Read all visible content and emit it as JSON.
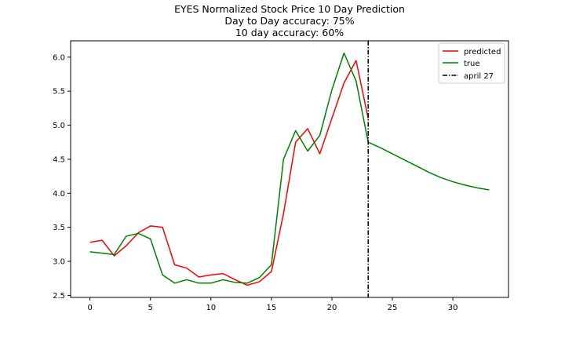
{
  "chart_data": {
    "type": "line",
    "title_lines": [
      "EYES Normalized Stock Price 10 Day Prediction",
      "Day to Day accuracy: 75%",
      "10 day accuracy: 60%"
    ],
    "xlabel": "",
    "ylabel": "",
    "xlim": [
      -1.6,
      34.6
    ],
    "ylim": [
      2.47,
      6.24
    ],
    "xticks": [
      0,
      5,
      10,
      15,
      20,
      25,
      30
    ],
    "yticks": [
      2.5,
      3.0,
      3.5,
      4.0,
      4.5,
      5.0,
      5.5,
      6.0
    ],
    "ytick_labels": [
      "2.5",
      "3.0",
      "3.5",
      "4.0",
      "4.5",
      "5.0",
      "5.5",
      "6.0"
    ],
    "grid": false,
    "legend_position": "top-right",
    "series": [
      {
        "name": "predicted",
        "color": "#ff0000",
        "x": [
          0,
          1,
          2,
          3,
          4,
          5,
          6,
          7,
          8,
          9,
          10,
          11,
          12,
          13,
          14,
          15,
          16,
          17,
          18,
          19,
          20,
          21,
          22,
          23
        ],
        "y": [
          3.28,
          3.31,
          3.08,
          3.23,
          3.42,
          3.52,
          3.5,
          2.95,
          2.9,
          2.77,
          2.8,
          2.82,
          2.73,
          2.65,
          2.7,
          2.85,
          3.7,
          4.75,
          4.95,
          4.58,
          5.1,
          5.62,
          5.95,
          5.1
        ]
      },
      {
        "name": "true",
        "color": "#008000",
        "x": [
          0,
          1,
          2,
          3,
          4,
          5,
          6,
          7,
          8,
          9,
          10,
          11,
          12,
          13,
          14,
          15,
          16,
          17,
          18,
          19,
          20,
          21,
          22,
          23,
          24,
          25,
          26,
          27,
          28,
          29,
          30,
          31,
          32,
          33
        ],
        "y": [
          3.14,
          3.12,
          3.1,
          3.37,
          3.41,
          3.33,
          2.8,
          2.68,
          2.73,
          2.68,
          2.68,
          2.73,
          2.69,
          2.68,
          2.76,
          2.95,
          4.5,
          4.92,
          4.62,
          4.85,
          5.52,
          6.06,
          5.65,
          4.75,
          4.67,
          4.58,
          4.49,
          4.4,
          4.31,
          4.23,
          4.17,
          4.12,
          4.08,
          4.05
        ]
      }
    ],
    "vlines": [
      {
        "name": "april 27",
        "x": 23,
        "color": "#000000",
        "style": "dashdot"
      }
    ]
  }
}
